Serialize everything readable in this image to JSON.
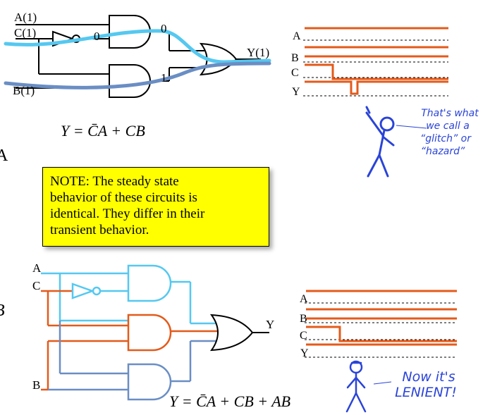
{
  "top_circuit": {
    "labels": {
      "a": "A(1)",
      "c": "C(1)",
      "b": "B(1)",
      "y": "Y(1)",
      "gate1_out": "0",
      "gate2_out": "1",
      "inverter_out": "0"
    },
    "equation": "Y = C̄A + CB"
  },
  "bottom_circuit": {
    "labels": {
      "a": "A",
      "c": "C",
      "b": "B",
      "y": "Y"
    },
    "equation": "Y = C̄A + CB + AB"
  },
  "top_waveform": {
    "labels": [
      "A",
      "B",
      "C",
      "Y"
    ]
  },
  "bottom_waveform": {
    "labels": [
      "A",
      "B",
      "C",
      "Y"
    ]
  },
  "side_letters": {
    "top": "A",
    "bottom": "B"
  },
  "note": {
    "lines": [
      "NOTE: The steady state",
      "behavior of these circuits is",
      "identical. They differ in their",
      "transient behavior."
    ]
  },
  "comic_top": {
    "lines": [
      "That's what",
      "we call a",
      "“glitch” or",
      "“hazard”"
    ]
  },
  "comic_bottom": {
    "lines": [
      "Now it's",
      "LENIENT!"
    ]
  },
  "colors": {
    "light_blue": "#55c8f0",
    "steel_blue": "#6a8ec4",
    "orange": "#e45a1a",
    "note_yellow": "#ffff00",
    "comic_blue": "#2a44d8"
  }
}
